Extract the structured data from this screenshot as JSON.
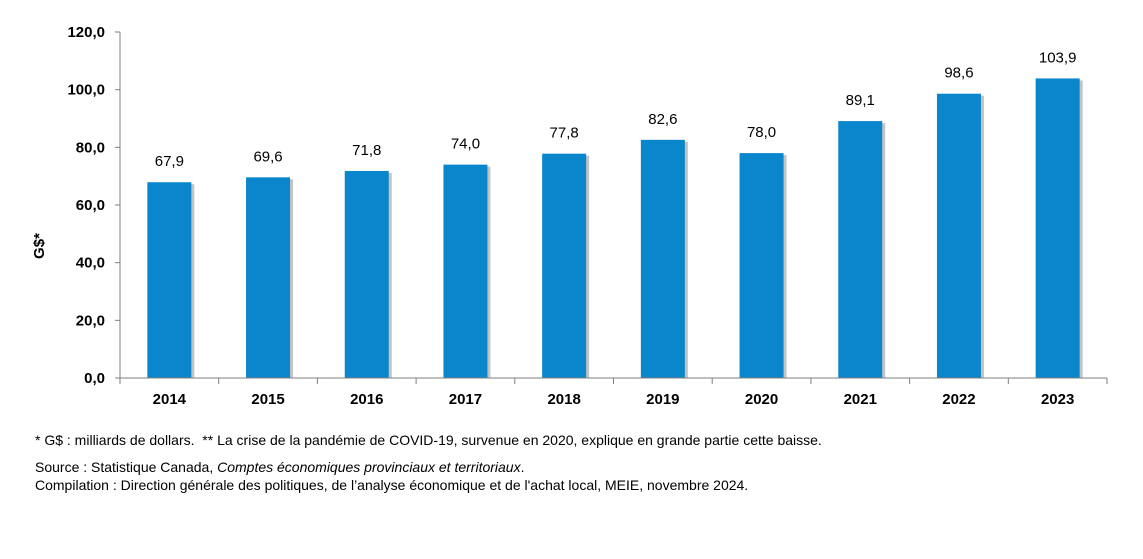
{
  "chart_data": {
    "type": "bar",
    "title": "",
    "xlabel": "",
    "ylabel": "G$*",
    "ylim": [
      0,
      120
    ],
    "yticks": [
      "0,0",
      "20,0",
      "40,0",
      "60,0",
      "80,0",
      "100,0",
      "120,0"
    ],
    "ytick_values": [
      0,
      20,
      40,
      60,
      80,
      100,
      120
    ],
    "categories": [
      "2014",
      "2015",
      "2016",
      "2017",
      "2018",
      "2019",
      "2020",
      "2021",
      "2022",
      "2023"
    ],
    "values": [
      67.9,
      69.6,
      71.8,
      74.0,
      77.8,
      82.6,
      78.0,
      89.1,
      98.6,
      103.9
    ],
    "value_labels": [
      "67,9",
      "69,6",
      "71,8",
      "74,0",
      "77,8",
      "82,6",
      "78,0",
      "89,1",
      "98,6",
      "103,9"
    ],
    "grid": false,
    "legend": "none",
    "bar_color": "#0a86cc",
    "shadow_color": "#c4c4c4"
  },
  "notes": {
    "footnote_a": "* G$ : milliards de dollars.",
    "footnote_b": "** La crise de la pandémie de COVID-19, survenue en 2020, explique en grande partie cette baisse.",
    "source_prefix": "Source : Statistique Canada, ",
    "source_title": "Comptes économiques provinciaux et territoriaux",
    "source_suffix": ".",
    "compilation": "Compilation : Direction générale des politiques, de l’analyse économique et de l'achat local, MEIE, novembre 2024."
  }
}
